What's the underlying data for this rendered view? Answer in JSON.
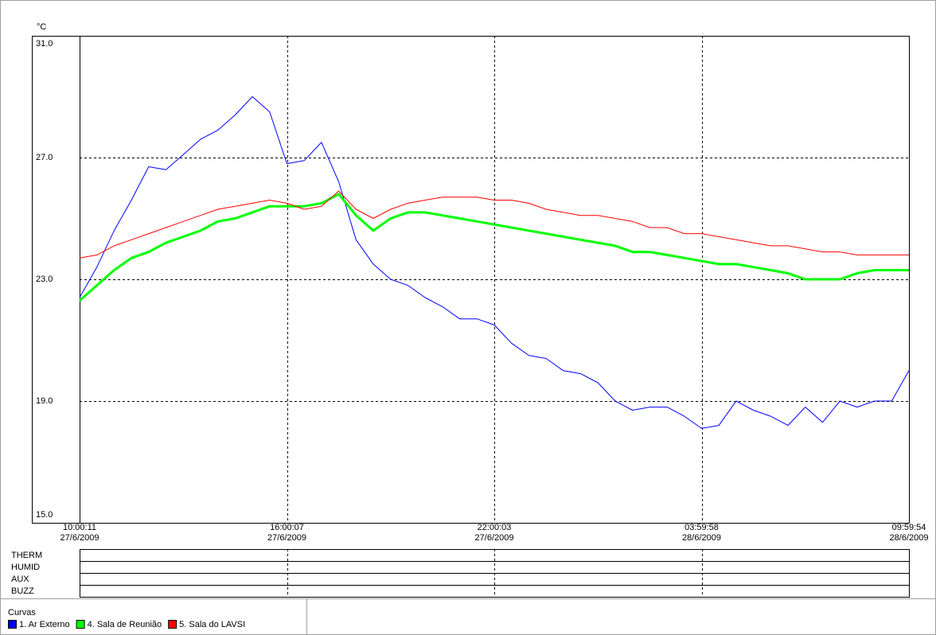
{
  "chart_data": {
    "type": "line",
    "y_label": "°C",
    "x": [
      0,
      0.5,
      1,
      1.5,
      2,
      2.5,
      3,
      3.5,
      4,
      4.5,
      5,
      5.5,
      6,
      6.5,
      7,
      7.5,
      8,
      8.5,
      9,
      9.5,
      10,
      10.5,
      11,
      11.5,
      12,
      12.5,
      13,
      13.5,
      14,
      14.5,
      15,
      15.5,
      16,
      16.5,
      17,
      17.5,
      18,
      18.5,
      19,
      19.5,
      20,
      20.5,
      21,
      21.5,
      22,
      22.5,
      23,
      23.5,
      24
    ],
    "xlim": [
      0,
      24
    ],
    "xticks": [
      {
        "value": 0,
        "label": "10:00:11",
        "date": "27/6/2009"
      },
      {
        "value": 6,
        "label": "16:00:07",
        "date": "27/6/2009"
      },
      {
        "value": 12,
        "label": "22:00:03",
        "date": "27/6/2009"
      },
      {
        "value": 18,
        "label": "03:59:58",
        "date": "28/6/2009"
      },
      {
        "value": 24,
        "label": "09:59:54",
        "date": "28/6/2009"
      }
    ],
    "ylim": [
      15,
      31
    ],
    "yticks": [
      {
        "value": 15,
        "label": "15.0"
      },
      {
        "value": 19,
        "label": "19.0"
      },
      {
        "value": 23,
        "label": "23.0"
      },
      {
        "value": 27,
        "label": "27.0"
      },
      {
        "value": 31,
        "label": "31.0"
      }
    ],
    "grid": true,
    "series": [
      {
        "name": "1. Ar Externo",
        "color": "#0000ff",
        "width": 1,
        "values": [
          22.4,
          23.4,
          24.6,
          25.6,
          26.7,
          26.6,
          27.1,
          27.6,
          27.9,
          28.4,
          29.0,
          28.5,
          26.8,
          26.9,
          27.5,
          26.2,
          24.3,
          23.5,
          23.0,
          22.8,
          22.4,
          22.1,
          21.7,
          21.7,
          21.5,
          20.9,
          20.5,
          20.4,
          20.0,
          19.9,
          19.6,
          19.0,
          18.7,
          18.8,
          18.8,
          18.5,
          18.1,
          18.2,
          19.0,
          18.7,
          18.5,
          18.2,
          18.8,
          18.3,
          19.0,
          18.8,
          19.0,
          19.0,
          20.0
        ]
      },
      {
        "name": "4. Sala de Reunião",
        "color": "#00ff00",
        "width": 3,
        "values": [
          22.3,
          22.8,
          23.3,
          23.7,
          23.9,
          24.2,
          24.4,
          24.6,
          24.9,
          25.0,
          25.2,
          25.4,
          25.4,
          25.4,
          25.5,
          25.8,
          25.1,
          24.6,
          25.0,
          25.2,
          25.2,
          25.1,
          25.0,
          24.9,
          24.8,
          24.7,
          24.6,
          24.5,
          24.4,
          24.3,
          24.2,
          24.1,
          23.9,
          23.9,
          23.8,
          23.7,
          23.6,
          23.5,
          23.5,
          23.4,
          23.3,
          23.2,
          23.0,
          23.0,
          23.0,
          23.2,
          23.3,
          23.3,
          23.3
        ]
      },
      {
        "name": "5. Sala do LAVSI",
        "color": "#ff0000",
        "width": 1,
        "values": [
          23.7,
          23.8,
          24.1,
          24.3,
          24.5,
          24.7,
          24.9,
          25.1,
          25.3,
          25.4,
          25.5,
          25.6,
          25.5,
          25.3,
          25.4,
          25.9,
          25.3,
          25.0,
          25.3,
          25.5,
          25.6,
          25.7,
          25.7,
          25.7,
          25.6,
          25.6,
          25.5,
          25.3,
          25.2,
          25.1,
          25.1,
          25.0,
          24.9,
          24.7,
          24.7,
          24.5,
          24.5,
          24.4,
          24.3,
          24.2,
          24.1,
          24.1,
          24.0,
          23.9,
          23.9,
          23.8,
          23.8,
          23.8,
          23.8
        ]
      }
    ],
    "channels": [
      "THERM",
      "HUMID",
      "AUX",
      "BUZZ"
    ],
    "legend_title": "Curvas"
  }
}
